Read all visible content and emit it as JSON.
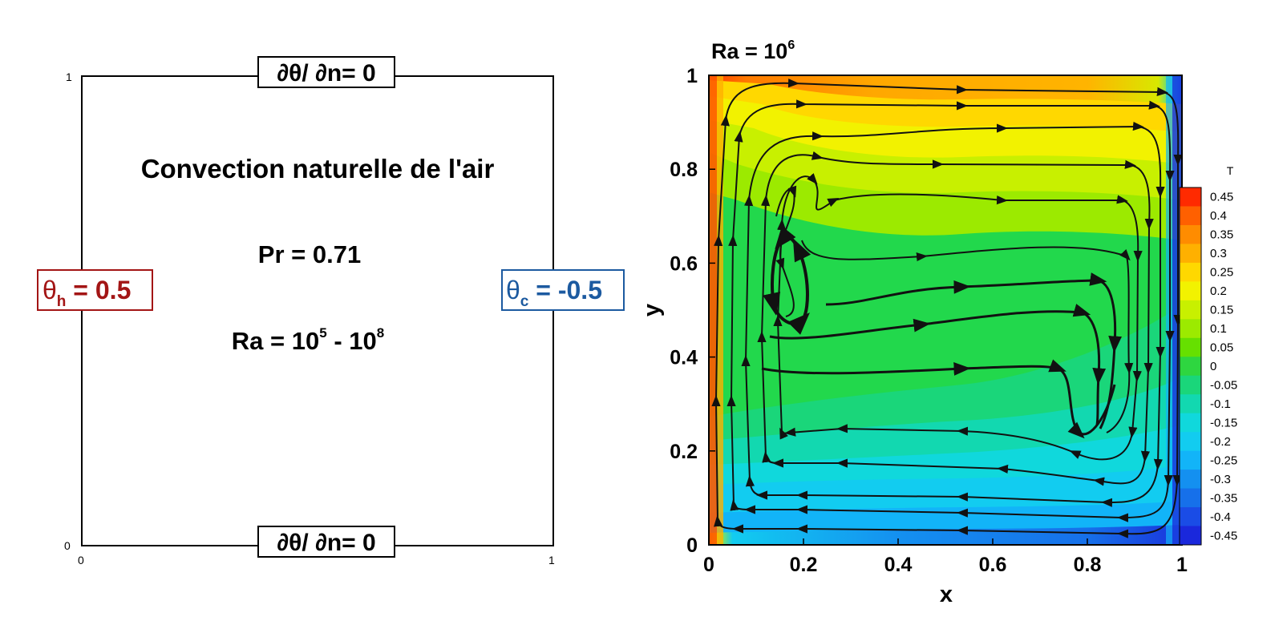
{
  "schematic": {
    "corner_one_y": "1",
    "corner_zero_y": "0",
    "corner_zero_x": "0",
    "corner_one_x": "1",
    "top_bc": "∂θ/ ∂n= 0",
    "bottom_bc": "∂θ/ ∂n= 0",
    "title": "Convection naturelle de l'air",
    "pr_text": "Pr = 0.71",
    "ra_prefix": "Ra = 10",
    "ra_exp_low": "5",
    "ra_middle": " - 10",
    "ra_exp_high": "8",
    "hot_symbol": "θ",
    "hot_sub": "h",
    "hot_value": " = 0.5",
    "cold_symbol": "θ",
    "cold_sub": "c",
    "cold_value": " = -0.5",
    "hot_color": "#a31515",
    "cold_color": "#1c5aa0"
  },
  "plot": {
    "title_prefix": "Ra = 10",
    "title_exp": "6",
    "xlabel": "x",
    "ylabel": "y",
    "x_ticks": [
      "0",
      "0.2",
      "0.4",
      "0.6",
      "0.8",
      "1"
    ],
    "y_ticks": [
      "0",
      "0.2",
      "0.4",
      "0.6",
      "0.8",
      "1"
    ],
    "colorbar_title": "T",
    "colorbar_labels": [
      "0.45",
      "0.4",
      "0.35",
      "0.3",
      "0.25",
      "0.2",
      "0.15",
      "0.1",
      "0.05",
      "0",
      "-0.05",
      "-0.1",
      "-0.15",
      "-0.2",
      "-0.25",
      "-0.3",
      "-0.35",
      "-0.4",
      "-0.45"
    ],
    "colorbar_colors": [
      "#ff2a00",
      "#ff6000",
      "#ff8c00",
      "#ffb000",
      "#ffd800",
      "#f2f200",
      "#c8f000",
      "#9cea00",
      "#66e000",
      "#2ed640",
      "#1ad67a",
      "#12d8b0",
      "#10d8dc",
      "#12ccf0",
      "#12b4f8",
      "#1490f0",
      "#1670ea",
      "#1a4ce6",
      "#1a28dc"
    ]
  }
}
